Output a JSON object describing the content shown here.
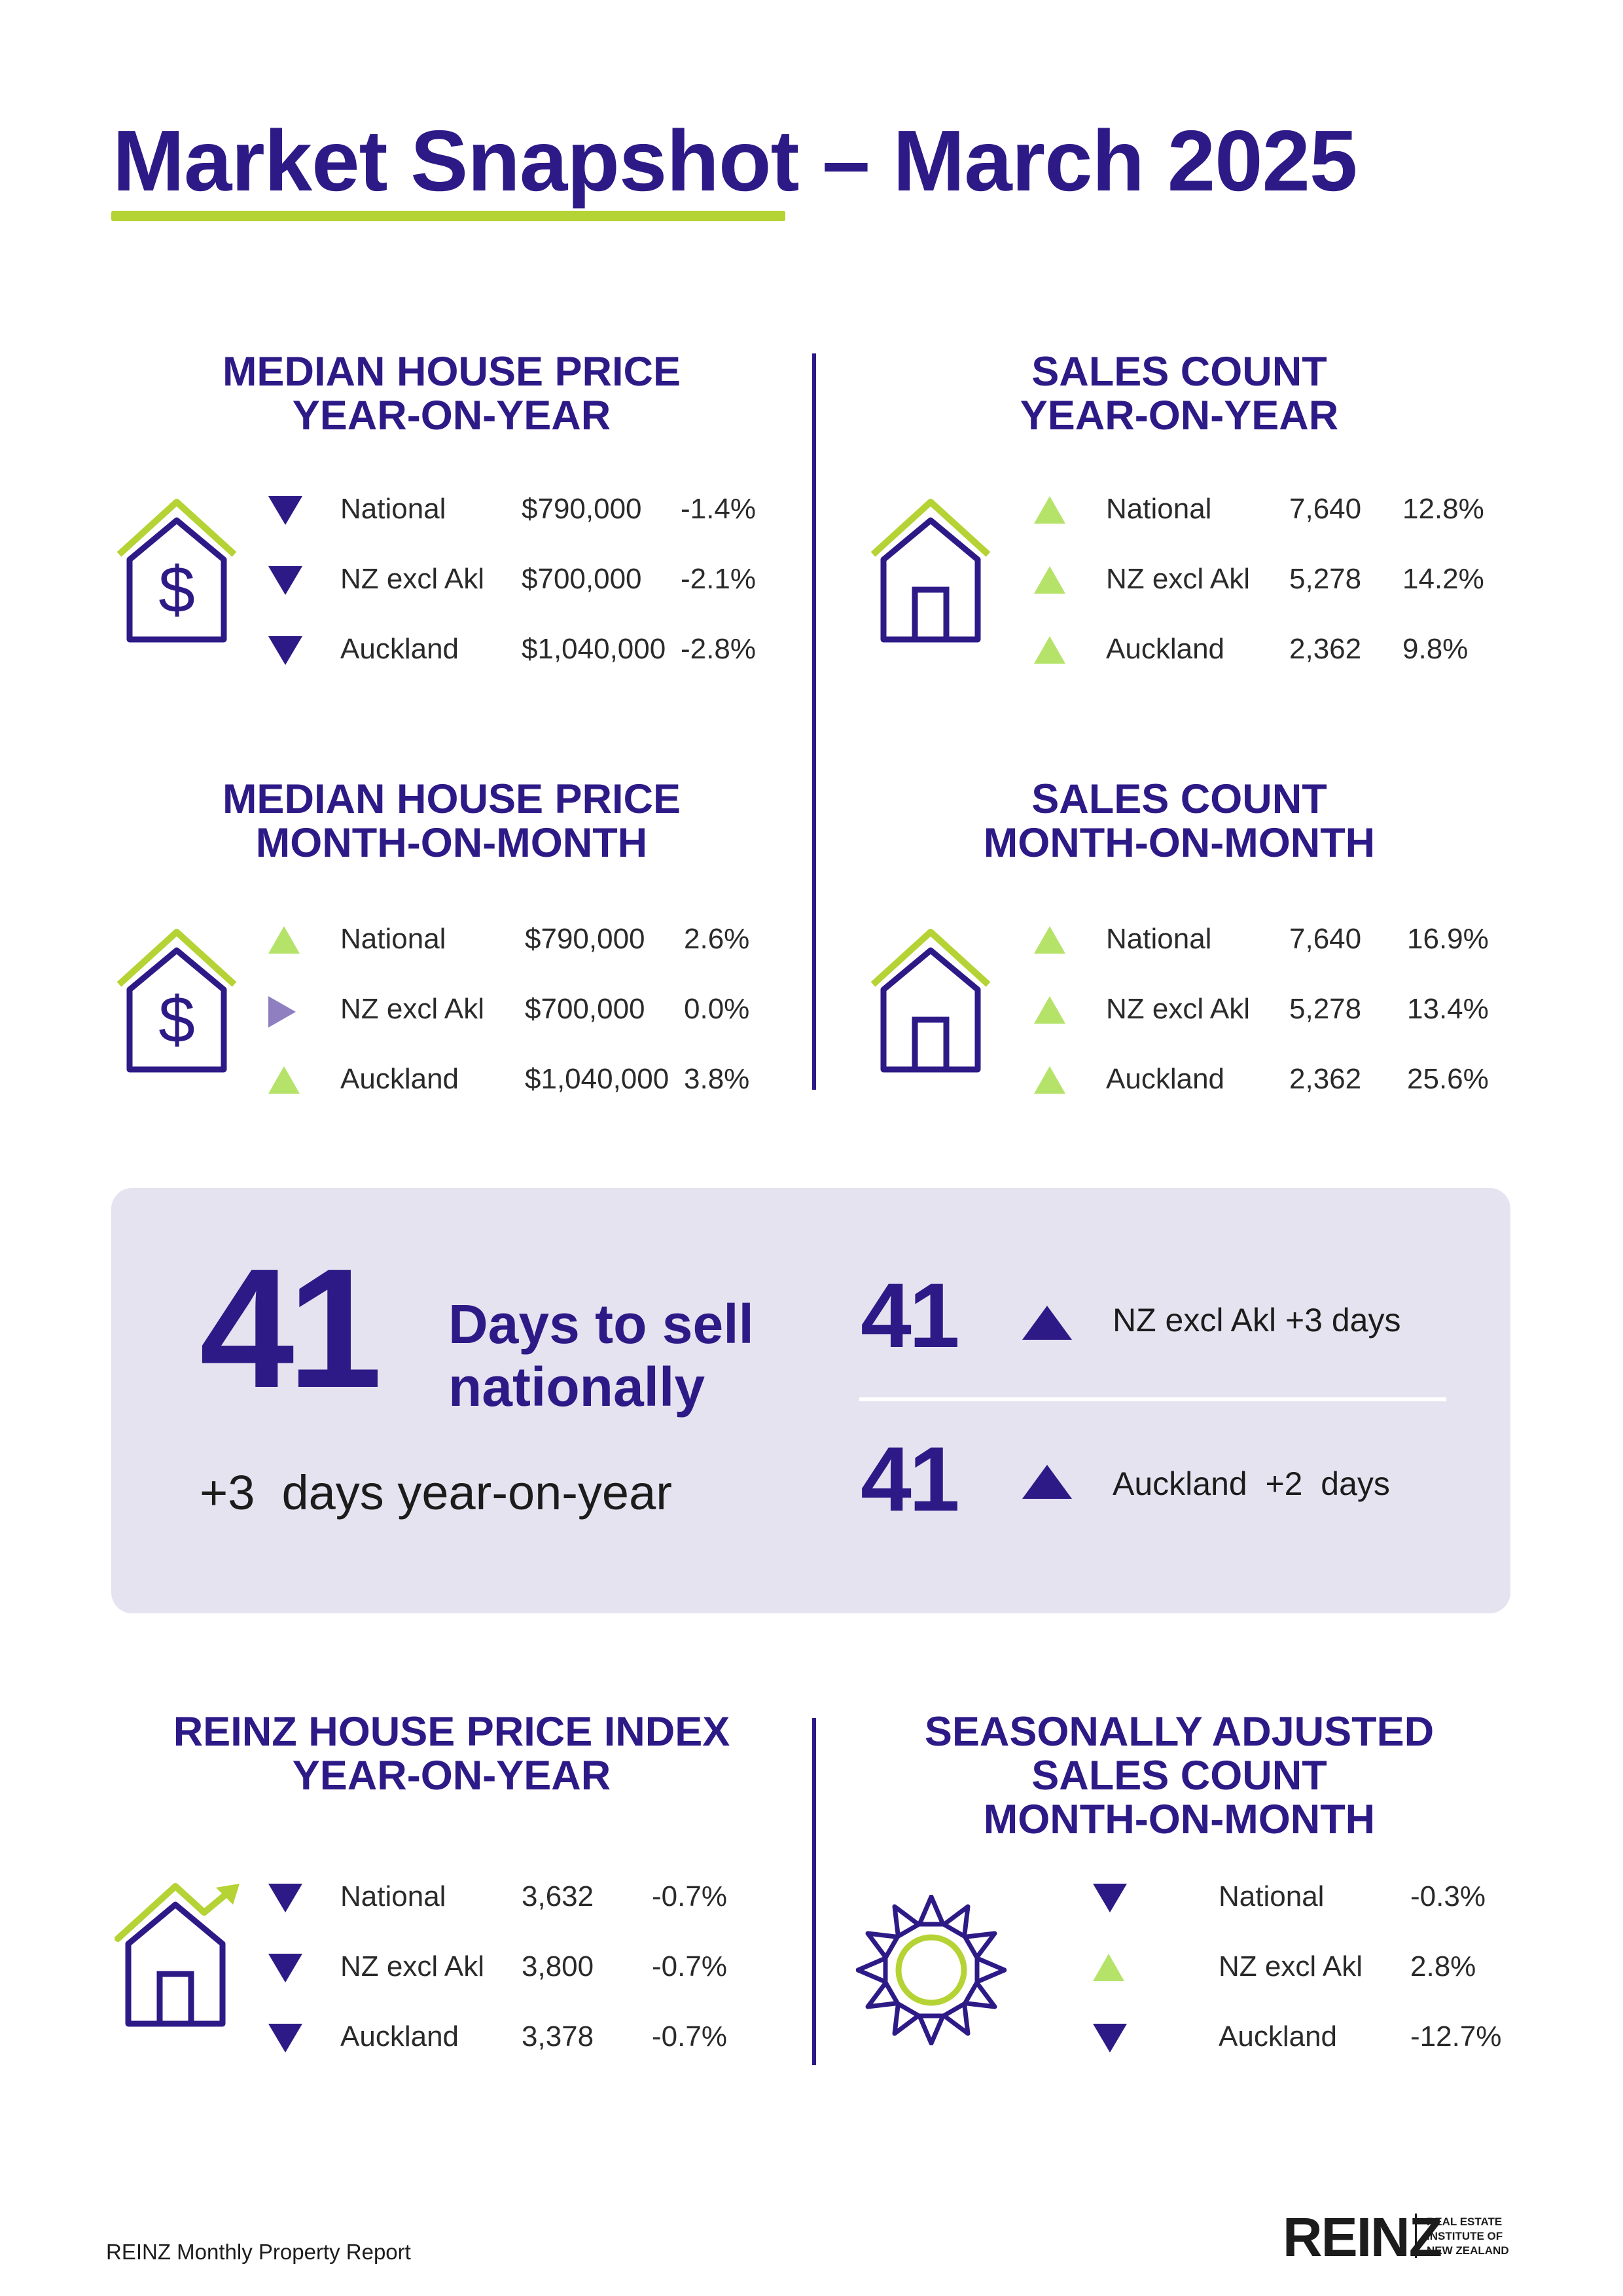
{
  "title": "Market Snapshot – March 2025",
  "colors": {
    "purple": "#2e1a87",
    "green": "#b5d334",
    "light_green": "#b5e36a",
    "box_bg": "#e5e3ef",
    "neutral_arrow": "#8f7fc0"
  },
  "sections": {
    "price_yoy": {
      "heading_line1": "MEDIAN HOUSE PRICE",
      "heading_line2": "YEAR-ON-YEAR",
      "icon": "house-dollar-icon",
      "rows": [
        {
          "direction": "down",
          "region": "National",
          "value": "$790,000",
          "change": "-1.4%"
        },
        {
          "direction": "down",
          "region": "NZ excl Akl",
          "value": "$700,000",
          "change": "-2.1%"
        },
        {
          "direction": "down",
          "region": "Auckland",
          "value": "$1,040,000",
          "change": "-2.8%"
        }
      ]
    },
    "sales_yoy": {
      "heading_line1": "SALES COUNT",
      "heading_line2": "YEAR-ON-YEAR",
      "icon": "house-icon",
      "rows": [
        {
          "direction": "up",
          "region": "National",
          "value": "7,640",
          "change": "12.8%"
        },
        {
          "direction": "up",
          "region": "NZ excl Akl",
          "value": "5,278",
          "change": "14.2%"
        },
        {
          "direction": "up",
          "region": "Auckland",
          "value": "2,362",
          "change": "9.8%"
        }
      ]
    },
    "price_mom": {
      "heading_line1": "MEDIAN HOUSE PRICE",
      "heading_line2": "MONTH-ON-MONTH",
      "icon": "house-dollar-icon",
      "rows": [
        {
          "direction": "up",
          "region": "National",
          "value": "$790,000",
          "change": "2.6%"
        },
        {
          "direction": "flat",
          "region": "NZ excl Akl",
          "value": "$700,000",
          "change": "0.0%"
        },
        {
          "direction": "up",
          "region": "Auckland",
          "value": "$1,040,000",
          "change": "3.8%"
        }
      ]
    },
    "sales_mom": {
      "heading_line1": "SALES COUNT",
      "heading_line2": "MONTH-ON-MONTH",
      "icon": "house-icon",
      "rows": [
        {
          "direction": "up",
          "region": "National",
          "value": "7,640",
          "change": "16.9%"
        },
        {
          "direction": "up",
          "region": "NZ excl Akl",
          "value": "5,278",
          "change": "13.4%"
        },
        {
          "direction": "up",
          "region": "Auckland",
          "value": "2,362",
          "change": "25.6%"
        }
      ]
    },
    "hpi_yoy": {
      "heading_line1": "REINZ HOUSE PRICE INDEX",
      "heading_line2": "YEAR-ON-YEAR",
      "icon": "house-trend-icon",
      "rows": [
        {
          "direction": "down",
          "region": "National",
          "value": "3,632",
          "change": "-0.7%"
        },
        {
          "direction": "down",
          "region": "NZ excl Akl",
          "value": "3,800",
          "change": "-0.7%"
        },
        {
          "direction": "down",
          "region": "Auckland",
          "value": "3,378",
          "change": "-0.7%"
        }
      ]
    },
    "seasonal_mom": {
      "heading_line1": "SEASONALLY ADJUSTED",
      "heading_line2": "SALES COUNT",
      "heading_line3": "MONTH-ON-MONTH",
      "icon": "sun-icon",
      "rows": [
        {
          "direction": "down",
          "region": "National",
          "change": "-0.3%"
        },
        {
          "direction": "up",
          "region": "NZ excl Akl",
          "change": "2.8%"
        },
        {
          "direction": "down",
          "region": "Auckland",
          "change": "-12.7%"
        }
      ]
    }
  },
  "days_to_sell": {
    "national_days": "41",
    "label_line1": "Days to sell",
    "label_line2": "nationally",
    "yoy_change": "+3  days year-on-year",
    "regions": [
      {
        "days": "41",
        "direction": "up",
        "label": "NZ excl Akl +3 days"
      },
      {
        "days": "41",
        "direction": "up",
        "label": "Auckland  +2  days"
      }
    ]
  },
  "footer": {
    "report_name": "REINZ Monthly Property Report",
    "logo_text": "REINZ",
    "logo_sub_line1": "REAL ESTATE",
    "logo_sub_line2": "INSTITUTE OF",
    "logo_sub_line3": "NEW ZEALAND"
  }
}
